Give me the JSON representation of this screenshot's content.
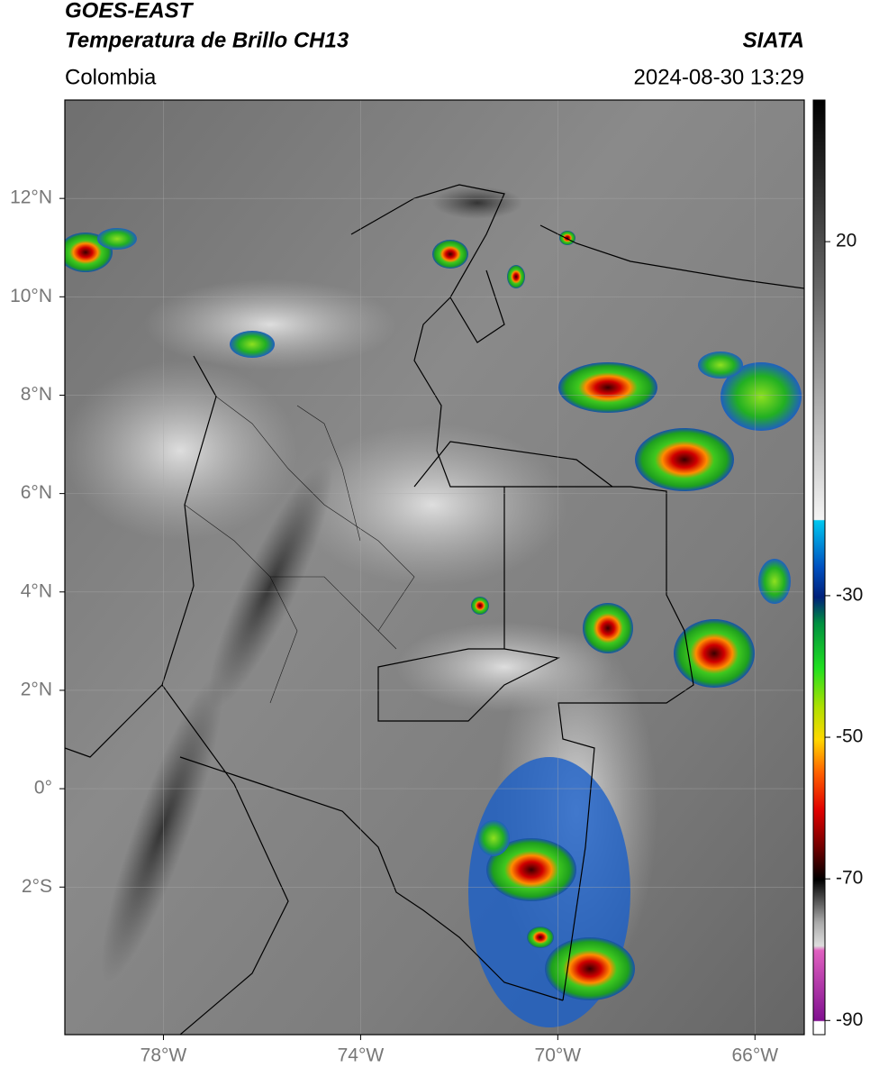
{
  "header": {
    "title": "GOES-EAST",
    "subtitle": "Temperatura de Brillo CH13",
    "source": "SIATA",
    "region": "Colombia",
    "datetime": "2024-08-30 13:29"
  },
  "map": {
    "lon_range": [
      -80,
      -65
    ],
    "lat_range": [
      -5,
      14
    ],
    "lon_ticks": [
      {
        "value": -78,
        "label": "78°W"
      },
      {
        "value": -74,
        "label": "74°W"
      },
      {
        "value": -70,
        "label": "70°W"
      },
      {
        "value": -66,
        "label": "66°W"
      }
    ],
    "lat_ticks": [
      {
        "value": 12,
        "label": "12°N"
      },
      {
        "value": 10,
        "label": "10°N"
      },
      {
        "value": 8,
        "label": "8°N"
      },
      {
        "value": 6,
        "label": "6°N"
      },
      {
        "value": 4,
        "label": "4°N"
      },
      {
        "value": 2,
        "label": "2°N"
      },
      {
        "value": 0,
        "label": "0°"
      },
      {
        "value": -2,
        "label": "2°S"
      }
    ],
    "grid": true
  },
  "colorbar": {
    "range": [
      -92,
      40
    ],
    "ticks": [
      20,
      -30,
      -50,
      -70,
      -90
    ]
  }
}
